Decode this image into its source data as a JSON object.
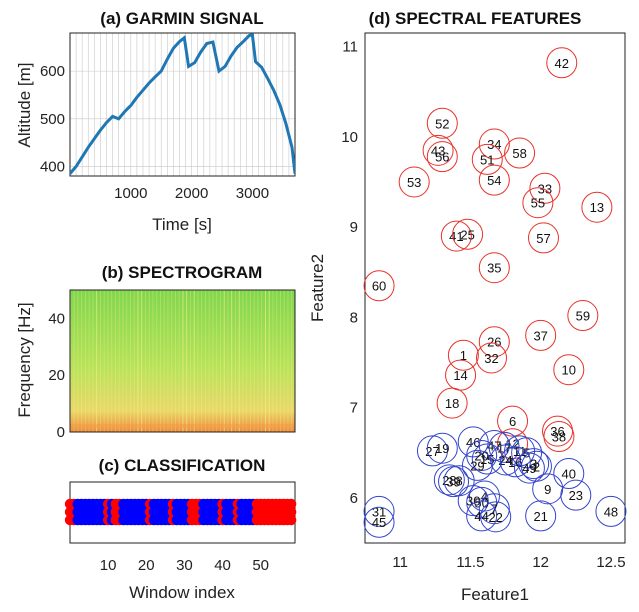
{
  "colors": {
    "line": "#1f77b4",
    "class_red": "#ff0000",
    "class_blue": "#0000ff",
    "cluster_red": "#e8322a",
    "cluster_blue": "#3344cc",
    "spectrogram_top": "#8ed84a",
    "spectrogram_bottom": "#f0a048",
    "spectrogram_stripe": "#f5f08a"
  },
  "chart_data": [
    {
      "id": "a",
      "type": "line",
      "title": "(a) GARMIN SIGNAL",
      "xlabel": "Time [s]",
      "ylabel": "Altitude [m]",
      "xlim": [
        0,
        3700
      ],
      "ylim": [
        380,
        680
      ],
      "xticks": [
        1000,
        2000,
        3000
      ],
      "yticks": [
        400,
        500,
        600
      ],
      "grid": true,
      "x": [
        0,
        100,
        200,
        300,
        400,
        500,
        600,
        700,
        800,
        900,
        1000,
        1100,
        1200,
        1300,
        1400,
        1500,
        1600,
        1700,
        1800,
        1880,
        1950,
        2050,
        2150,
        2250,
        2350,
        2450,
        2550,
        2650,
        2750,
        2850,
        2950,
        3000,
        3050,
        3150,
        3250,
        3350,
        3450,
        3550,
        3650,
        3700
      ],
      "y": [
        385,
        400,
        420,
        440,
        458,
        476,
        492,
        505,
        500,
        515,
        528,
        545,
        560,
        575,
        588,
        600,
        625,
        648,
        662,
        670,
        610,
        618,
        640,
        658,
        661,
        600,
        610,
        632,
        650,
        662,
        675,
        676,
        620,
        608,
        585,
        560,
        530,
        490,
        440,
        385
      ]
    },
    {
      "id": "b",
      "type": "heatmap",
      "title": "(b) SPECTROGRAM",
      "xlabel": "",
      "ylabel": "Frequency [Hz]",
      "ylim": [
        0,
        50
      ],
      "yticks": [
        0,
        20,
        40
      ],
      "xticks": []
    },
    {
      "id": "c",
      "type": "scatter",
      "title": "(c) CLASSIFICATION",
      "xlabel": "Window index",
      "xlim": [
        0,
        59
      ],
      "xticks": [
        10,
        20,
        30,
        40,
        50
      ],
      "classes": [
        "red",
        "blue"
      ],
      "labels_by_window": [
        "red",
        "red",
        "blue",
        "blue",
        "blue",
        "blue",
        "blue",
        "blue",
        "blue",
        "blue",
        "red",
        "blue",
        "red",
        "red",
        "blue",
        "blue",
        "blue",
        "blue",
        "blue",
        "blue",
        "blue",
        "red",
        "blue",
        "blue",
        "blue",
        "blue",
        "blue",
        "red",
        "blue",
        "blue",
        "blue",
        "blue",
        "red",
        "red",
        "red",
        "blue",
        "blue",
        "blue",
        "blue",
        "blue",
        "red",
        "blue",
        "blue",
        "blue",
        "red",
        "blue",
        "blue",
        "blue",
        "blue",
        "red",
        "red",
        "red",
        "red",
        "red",
        "red",
        "red",
        "red",
        "red",
        "red"
      ]
    },
    {
      "id": "d",
      "type": "scatter",
      "title": "(d) SPECTRAL FEATURES",
      "xlabel": "Feature1",
      "ylabel": "Feature2",
      "xlim": [
        10.75,
        12.6
      ],
      "ylim": [
        5.5,
        11.15
      ],
      "xticks": [
        11,
        11.5,
        12,
        12.5
      ],
      "yticks": [
        6,
        7,
        8,
        9,
        10,
        11
      ],
      "series": [
        {
          "points": [
            {
              "label": "42",
              "x": 12.15,
              "y": 10.82
            },
            {
              "label": "52",
              "x": 11.3,
              "y": 10.15
            },
            {
              "label": "43",
              "x": 11.27,
              "y": 9.85
            },
            {
              "label": "56",
              "x": 11.3,
              "y": 9.78
            },
            {
              "label": "34",
              "x": 11.67,
              "y": 9.92
            },
            {
              "label": "51",
              "x": 11.62,
              "y": 9.75
            },
            {
              "label": "58",
              "x": 11.85,
              "y": 9.82
            },
            {
              "label": "53",
              "x": 11.1,
              "y": 9.5
            },
            {
              "label": "54",
              "x": 11.67,
              "y": 9.52
            },
            {
              "label": "33",
              "x": 12.03,
              "y": 9.43
            },
            {
              "label": "55",
              "x": 11.98,
              "y": 9.27
            },
            {
              "label": "13",
              "x": 12.4,
              "y": 9.22
            },
            {
              "label": "41",
              "x": 11.4,
              "y": 8.9
            },
            {
              "label": "25",
              "x": 11.48,
              "y": 8.92
            },
            {
              "label": "57",
              "x": 12.02,
              "y": 8.88
            },
            {
              "label": "35",
              "x": 11.67,
              "y": 8.55
            },
            {
              "label": "60",
              "x": 10.85,
              "y": 8.35
            },
            {
              "label": "59",
              "x": 12.3,
              "y": 8.02
            },
            {
              "label": "37",
              "x": 12.0,
              "y": 7.8
            },
            {
              "label": "26",
              "x": 11.67,
              "y": 7.73
            },
            {
              "label": "1",
              "x": 11.45,
              "y": 7.58
            },
            {
              "label": "32",
              "x": 11.65,
              "y": 7.55
            },
            {
              "label": "10",
              "x": 12.2,
              "y": 7.42
            },
            {
              "label": "14",
              "x": 11.43,
              "y": 7.36
            },
            {
              "label": "18",
              "x": 11.37,
              "y": 7.05
            },
            {
              "label": "6",
              "x": 11.8,
              "y": 6.85
            },
            {
              "label": "36",
              "x": 12.12,
              "y": 6.74
            },
            {
              "label": "38",
              "x": 12.13,
              "y": 6.68
            },
            {
              "label": "12",
              "x": 11.8,
              "y": 6.6
            }
          ]
        },
        {
          "points": [
            {
              "label": "46",
              "x": 11.52,
              "y": 6.62
            },
            {
              "label": "27",
              "x": 11.23,
              "y": 6.52
            },
            {
              "label": "19",
              "x": 11.3,
              "y": 6.55
            },
            {
              "label": "47",
              "x": 11.67,
              "y": 6.58
            },
            {
              "label": "17",
              "x": 11.74,
              "y": 6.56
            },
            {
              "label": "11",
              "x": 11.85,
              "y": 6.52
            },
            {
              "label": "5",
              "x": 11.9,
              "y": 6.5
            },
            {
              "label": "20",
              "x": 11.58,
              "y": 6.47
            },
            {
              "label": "15",
              "x": 11.62,
              "y": 6.43
            },
            {
              "label": "24",
              "x": 11.75,
              "y": 6.42
            },
            {
              "label": "16",
              "x": 11.82,
              "y": 6.4
            },
            {
              "label": "3",
              "x": 11.95,
              "y": 6.38
            },
            {
              "label": "29",
              "x": 11.55,
              "y": 6.36
            },
            {
              "label": "49",
              "x": 11.92,
              "y": 6.33
            },
            {
              "label": "2",
              "x": 11.97,
              "y": 6.35
            },
            {
              "label": "40",
              "x": 12.2,
              "y": 6.27
            },
            {
              "label": "28",
              "x": 11.35,
              "y": 6.2
            },
            {
              "label": "39",
              "x": 11.38,
              "y": 6.18
            },
            {
              "label": "8",
              "x": 11.42,
              "y": 6.19
            },
            {
              "label": "9",
              "x": 12.05,
              "y": 6.1
            },
            {
              "label": "23",
              "x": 12.25,
              "y": 6.03
            },
            {
              "label": "4",
              "x": 11.6,
              "y": 6.02
            },
            {
              "label": "30",
              "x": 11.52,
              "y": 5.97
            },
            {
              "label": "50",
              "x": 11.58,
              "y": 5.95
            },
            {
              "label": "31",
              "x": 10.85,
              "y": 5.85
            },
            {
              "label": "48",
              "x": 12.5,
              "y": 5.85
            },
            {
              "label": "7",
              "x": 11.67,
              "y": 5.88
            },
            {
              "label": "44",
              "x": 11.58,
              "y": 5.8
            },
            {
              "label": "22",
              "x": 11.68,
              "y": 5.79
            },
            {
              "label": "21",
              "x": 12.0,
              "y": 5.8
            },
            {
              "label": "45",
              "x": 10.85,
              "y": 5.73
            }
          ]
        }
      ]
    }
  ]
}
